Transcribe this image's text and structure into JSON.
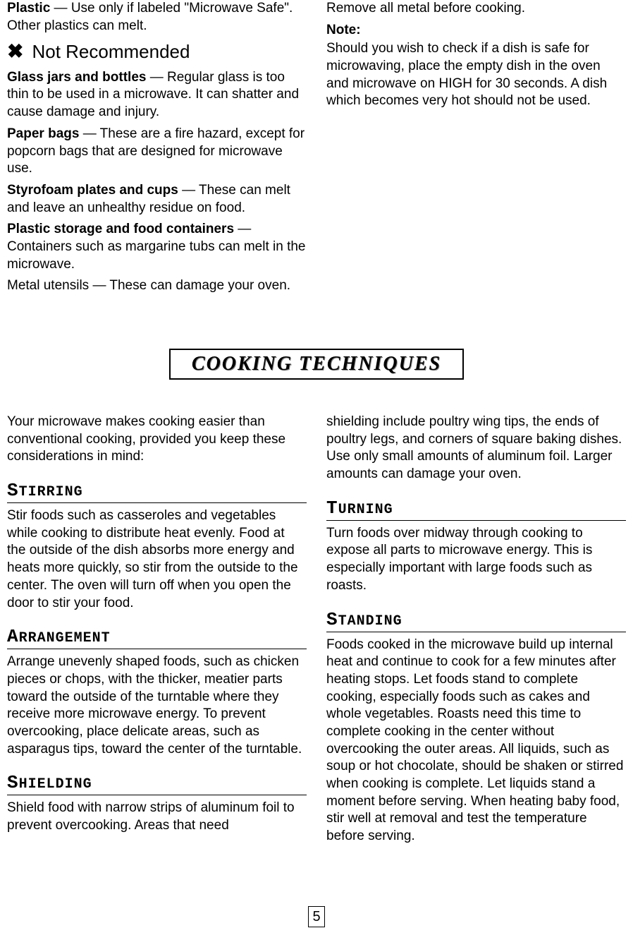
{
  "top": {
    "left": {
      "plastic_bold": "Plastic",
      "plastic_text": " — Use only if labeled \"Microwave Safe\". Other plastics can melt.",
      "not_rec_icon": "✖",
      "not_rec_heading": "Not Recommended",
      "glass_bold": "Glass jars and bottles",
      "glass_text": " — Regular glass is too thin to be used in a microwave. It can shatter and cause damage and injury.",
      "paper_bold": "Paper bags",
      "paper_text": " — These are a fire hazard, except for popcorn bags that are designed for microwave use.",
      "styro_bold": "Styrofoam plates and cups",
      "styro_text": " — These can melt and leave an unhealthy residue on food.",
      "storage_bold": "Plastic storage and food containers",
      "storage_text": " — Containers such as margarine tubs can melt in the microwave.",
      "metal_text": "Metal utensils — These can damage your oven."
    },
    "right": {
      "remove_text": "Remove all metal before cooking.",
      "note_bold": "Note:",
      "note_text": "Should you wish to check if a dish is safe for microwaving, place the empty dish in the oven and microwave on HIGH for 30 seconds. A dish which becomes very hot should not be used."
    }
  },
  "section_title": "COOKING TECHNIQUES",
  "bottom": {
    "left": {
      "intro": "Your microwave makes cooking easier than conventional cooking, provided you keep these considerations in mind:",
      "stirring_h_first": "S",
      "stirring_h_rest": "TIRRING",
      "stirring_text": "Stir foods such as casseroles and vegetables while cooking to distribute heat evenly. Food at the outside of the dish absorbs more energy and heats more quickly, so stir from the outside to the center. The oven will turn off when you open the door to stir your food.",
      "arrangement_h_first": "A",
      "arrangement_h_rest": "RRANGEMENT",
      "arrangement_text": "Arrange unevenly shaped foods, such as chicken pieces or chops, with the thicker, meatier parts toward the outside of the turntable where they receive more microwave energy. To prevent overcooking, place delicate areas, such as asparagus tips, toward the center of the turntable.",
      "shielding_h_first": "S",
      "shielding_h_rest": "HIELDING",
      "shielding_text": "Shield food with narrow strips of aluminum foil to prevent overcooking. Areas that need"
    },
    "right": {
      "shielding_cont": "shielding include poultry wing tips, the ends of poultry legs, and corners of square baking dishes. Use only small amounts of aluminum foil. Larger amounts can damage your oven.",
      "turning_h_first": "T",
      "turning_h_rest": "URNING",
      "turning_text": "Turn foods over midway through cooking to expose all parts to microwave energy. This is especially important with large foods such as roasts.",
      "standing_h_first": "S",
      "standing_h_rest": "TANDING",
      "standing_text": "Foods cooked in the microwave build up internal heat and continue to cook for a few minutes after heating stops. Let foods stand to complete cooking, especially foods such as cakes and whole vegetables. Roasts need this time to complete cooking in the center without overcooking the outer areas. All liquids, such as soup or hot chocolate, should be shaken or stirred when cooking is complete. Let liquids stand a moment before serving. When heating baby food, stir well at removal and test the temperature before serving."
    }
  },
  "page_number": "5"
}
